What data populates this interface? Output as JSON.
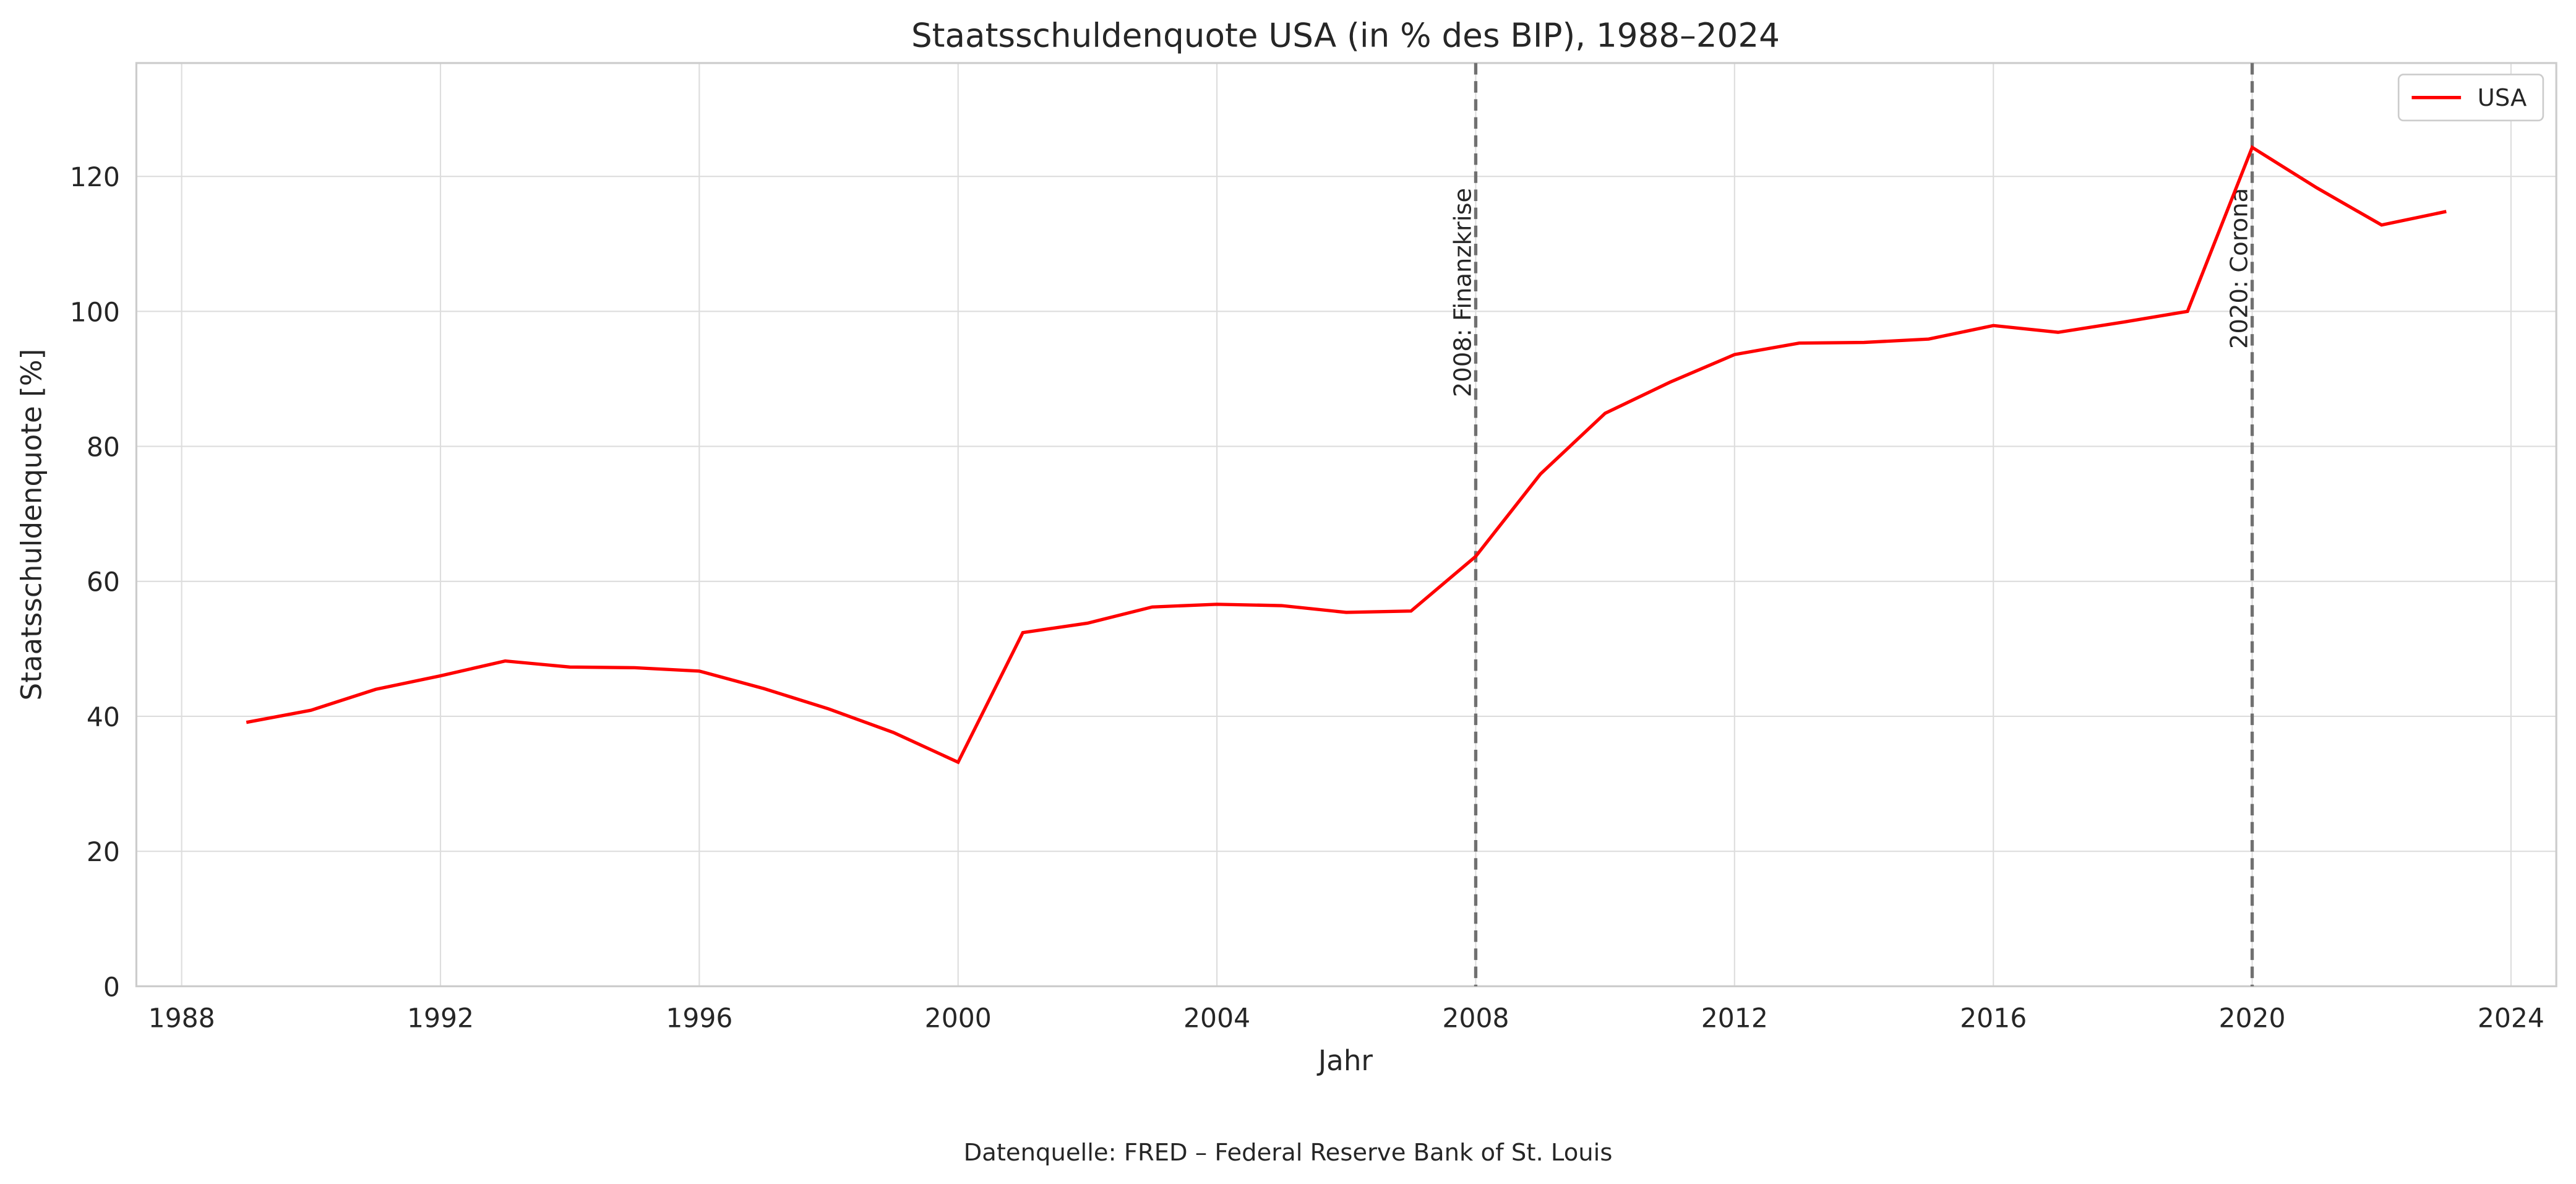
{
  "chart_data": {
    "type": "line",
    "title": "Staatsschuldenquote USA (in % des BIP), 1988–2024",
    "x_label": "Jahr",
    "y_label": "Staatsschuldenquote [%]",
    "source": "Datenquelle: FRED – Federal Reserve Bank of St. Louis",
    "x": [
      1989,
      1990,
      1991,
      1992,
      1993,
      1994,
      1995,
      1996,
      1997,
      1998,
      1999,
      2000,
      2001,
      2002,
      2003,
      2004,
      2005,
      2006,
      2007,
      2008,
      2009,
      2010,
      2011,
      2012,
      2013,
      2014,
      2015,
      2016,
      2017,
      2018,
      2019,
      2020,
      2021,
      2022,
      2023
    ],
    "series": [
      {
        "name": "USA",
        "color": "#ff0000",
        "values": [
          39.1,
          40.9,
          44.0,
          46.0,
          48.2,
          47.3,
          47.2,
          46.7,
          44.1,
          41.1,
          37.6,
          33.2,
          52.4,
          53.8,
          56.2,
          56.6,
          56.4,
          55.4,
          55.6,
          63.7,
          75.9,
          84.9,
          89.5,
          93.6,
          95.3,
          95.4,
          95.9,
          97.9,
          96.9,
          98.4,
          100.0,
          124.3,
          118.3,
          112.8,
          114.8
        ]
      }
    ],
    "vlines": [
      {
        "x": 2008,
        "label": "2008: Finanzkrise"
      },
      {
        "x": 2020,
        "label": "2020: Corona"
      }
    ],
    "xlim": [
      1987.3,
      2024.7
    ],
    "xticks": [
      1988,
      1992,
      1996,
      2000,
      2004,
      2008,
      2012,
      2016,
      2020,
      2024
    ],
    "ylim": [
      0,
      136.8
    ],
    "yticks": [
      0,
      20,
      40,
      60,
      80,
      100,
      120
    ],
    "grid": true,
    "legend": "upper right"
  }
}
